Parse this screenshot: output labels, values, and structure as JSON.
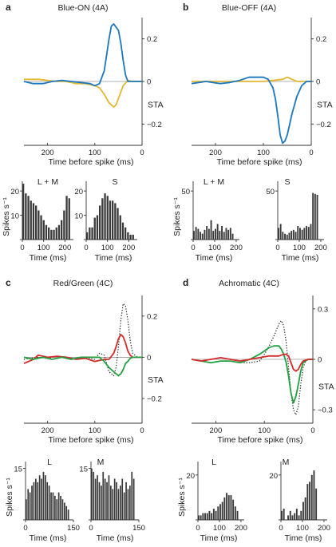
{
  "colors": {
    "blue": "#1a77c0",
    "yellow": "#e4b830",
    "red": "#d42a2a",
    "green": "#22a040",
    "black": "#222222",
    "bar": "#3a3a3a"
  },
  "chart_data": [
    {
      "type": "line",
      "panel_label": "a",
      "title": "Blue-ON (4A)",
      "xlabel": "Time before spike (ms)",
      "ylabel": "STA",
      "xlim": [
        250,
        0
      ],
      "ylim": [
        -0.3,
        0.3
      ],
      "xticks": [
        "200",
        "100",
        "0"
      ],
      "xtick_values": [
        200,
        100,
        0
      ],
      "yticks": [
        "0.2",
        "0",
        "−0.2"
      ],
      "ytick_values": [
        0.2,
        0,
        -0.2
      ],
      "zero_line": true,
      "series": [
        {
          "color_key": "yellow",
          "style": "solid",
          "x": [
            250,
            220,
            200,
            180,
            160,
            140,
            120,
            100,
            90,
            80,
            70,
            60,
            55,
            50,
            40,
            30,
            20,
            10,
            0
          ],
          "y": [
            0.01,
            0.01,
            0.005,
            0,
            0,
            -0.01,
            -0.01,
            -0.02,
            -0.03,
            -0.06,
            -0.1,
            -0.12,
            -0.11,
            -0.08,
            -0.02,
            0.005,
            0,
            0,
            0
          ]
        },
        {
          "color_key": "blue",
          "style": "solid",
          "x": [
            250,
            230,
            210,
            190,
            170,
            150,
            130,
            110,
            100,
            90,
            80,
            70,
            65,
            60,
            50,
            45,
            40,
            35,
            30,
            20,
            10,
            0
          ],
          "y": [
            0,
            -0.01,
            -0.01,
            0,
            0.005,
            0,
            -0.005,
            -0.01,
            -0.02,
            -0.01,
            0.05,
            0.2,
            0.26,
            0.27,
            0.24,
            0.18,
            0.1,
            0.03,
            0,
            0,
            0,
            0
          ]
        }
      ]
    },
    {
      "type": "line",
      "panel_label": "b",
      "title": "Blue-OFF (4A)",
      "xlabel": "Time before spike (ms)",
      "ylabel": "STA",
      "xlim": [
        250,
        0
      ],
      "ylim": [
        -0.3,
        0.3
      ],
      "xticks": [
        "200",
        "100",
        "0"
      ],
      "xtick_values": [
        200,
        100,
        0
      ],
      "yticks": [
        "0.2",
        "0",
        "−0.2"
      ],
      "ytick_values": [
        0.2,
        0,
        -0.2
      ],
      "zero_line": true,
      "series": [
        {
          "color_key": "yellow",
          "style": "solid",
          "x": [
            250,
            220,
            200,
            180,
            160,
            140,
            120,
            100,
            80,
            60,
            50,
            45,
            40,
            30,
            20,
            10,
            0
          ],
          "y": [
            0,
            0,
            0,
            0,
            0,
            0,
            0,
            0,
            0.005,
            0.01,
            0.02,
            0.015,
            0.01,
            0,
            0,
            0,
            0
          ]
        },
        {
          "color_key": "blue",
          "style": "solid",
          "x": [
            250,
            220,
            190,
            170,
            150,
            130,
            120,
            110,
            100,
            90,
            80,
            75,
            70,
            65,
            60,
            55,
            50,
            40,
            30,
            20,
            10,
            0
          ],
          "y": [
            -0.01,
            0,
            -0.01,
            -0.005,
            0.005,
            0.02,
            0.02,
            0.02,
            0.02,
            0.01,
            -0.03,
            -0.08,
            -0.16,
            -0.25,
            -0.29,
            -0.28,
            -0.25,
            -0.15,
            -0.07,
            -0.02,
            0,
            0
          ]
        }
      ]
    },
    {
      "type": "line",
      "panel_label": "c",
      "title": "Red/Green (4C)",
      "xlabel": "Time before spike (ms)",
      "ylabel": "STA",
      "xlim": [
        250,
        0
      ],
      "ylim": [
        -0.32,
        0.3
      ],
      "xticks": [
        "200",
        "100",
        "0"
      ],
      "xtick_values": [
        200,
        100,
        0
      ],
      "yticks": [
        "0.2",
        "0",
        "−0.2"
      ],
      "ytick_values": [
        0.2,
        0,
        -0.2
      ],
      "zero_line": true,
      "series": [
        {
          "color_key": "black",
          "style": "dotted",
          "x": [
            250,
            220,
            200,
            180,
            160,
            140,
            120,
            100,
            90,
            80,
            70,
            60,
            55,
            50,
            45,
            40,
            35,
            30,
            25,
            20,
            10,
            0
          ],
          "y": [
            -0.01,
            0,
            -0.005,
            0.005,
            0,
            -0.01,
            0,
            -0.01,
            0.02,
            0.01,
            -0.07,
            -0.09,
            -0.05,
            0.05,
            0.18,
            0.26,
            0.25,
            0.18,
            0.08,
            0.02,
            0,
            0
          ]
        },
        {
          "color_key": "red",
          "style": "solid",
          "x": [
            250,
            240,
            230,
            220,
            200,
            180,
            160,
            140,
            120,
            100,
            80,
            70,
            60,
            55,
            50,
            45,
            40,
            35,
            30,
            25,
            20,
            10,
            0
          ],
          "y": [
            -0.03,
            -0.02,
            -0.01,
            0.01,
            0,
            0.005,
            0,
            -0.01,
            -0.005,
            -0.02,
            -0.01,
            -0.01,
            0.02,
            0.05,
            0.09,
            0.11,
            0.1,
            0.07,
            0.03,
            0.01,
            0,
            0,
            0
          ]
        },
        {
          "color_key": "green",
          "style": "solid",
          "x": [
            250,
            230,
            210,
            190,
            170,
            150,
            130,
            110,
            90,
            80,
            70,
            60,
            50,
            45,
            40,
            35,
            30,
            25,
            20,
            10,
            0
          ],
          "y": [
            0,
            -0.01,
            0,
            -0.01,
            0,
            -0.01,
            0,
            0,
            0,
            -0.02,
            -0.05,
            -0.07,
            -0.09,
            -0.08,
            -0.06,
            -0.03,
            -0.02,
            -0.005,
            0,
            0,
            0
          ]
        }
      ]
    },
    {
      "type": "line",
      "panel_label": "d",
      "title": "Achromatic (4C)",
      "xlabel": "Time before spike (ms)",
      "ylabel": "STA",
      "xlim": [
        250,
        0
      ],
      "ylim": [
        -0.38,
        0.38
      ],
      "xticks": [
        "200",
        "100",
        "0"
      ],
      "xtick_values": [
        200,
        100,
        0
      ],
      "yticks": [
        "0.3",
        "0",
        "−0.3"
      ],
      "ytick_values": [
        0.3,
        0,
        -0.3
      ],
      "zero_line": true,
      "series": [
        {
          "color_key": "black",
          "style": "dotted",
          "x": [
            250,
            230,
            210,
            190,
            170,
            150,
            130,
            110,
            100,
            90,
            80,
            70,
            65,
            60,
            55,
            50,
            45,
            40,
            35,
            30,
            25,
            20,
            15,
            10,
            0
          ],
          "y": [
            0,
            -0.01,
            -0.02,
            -0.01,
            -0.01,
            -0.02,
            -0.02,
            -0.01,
            0.03,
            0.08,
            0.14,
            0.21,
            0.23,
            0.2,
            0.1,
            -0.05,
            -0.2,
            -0.3,
            -0.33,
            -0.28,
            -0.15,
            -0.05,
            -0.01,
            0,
            0
          ]
        },
        {
          "color_key": "green",
          "style": "solid",
          "x": [
            250,
            230,
            210,
            190,
            170,
            150,
            130,
            110,
            100,
            90,
            80,
            70,
            65,
            60,
            55,
            50,
            45,
            40,
            35,
            30,
            25,
            20,
            10,
            0
          ],
          "y": [
            0,
            -0.01,
            -0.02,
            -0.01,
            -0.01,
            -0.02,
            0,
            0.03,
            0.05,
            0.07,
            0.08,
            0.08,
            0.06,
            0.03,
            -0.02,
            -0.1,
            -0.2,
            -0.26,
            -0.22,
            -0.15,
            -0.07,
            -0.02,
            0,
            0
          ]
        },
        {
          "color_key": "red",
          "style": "solid",
          "x": [
            250,
            230,
            210,
            190,
            170,
            150,
            130,
            110,
            90,
            80,
            70,
            60,
            55,
            50,
            45,
            40,
            35,
            30,
            25,
            20,
            10,
            0
          ],
          "y": [
            0,
            -0.01,
            0,
            0.01,
            0,
            -0.01,
            0,
            0.01,
            0.02,
            0.02,
            0.02,
            0.03,
            0.03,
            0.02,
            -0.02,
            -0.06,
            -0.07,
            -0.06,
            -0.03,
            -0.01,
            0,
            0
          ]
        }
      ]
    },
    {
      "type": "bar",
      "title": "L + M",
      "xlabel": "Time (ms)",
      "ylabel": "Spikes s⁻¹",
      "xlim": [
        0,
        240
      ],
      "ylim": [
        0,
        24
      ],
      "xticks": [
        "0",
        "100",
        "200"
      ],
      "xtick_values": [
        0,
        100,
        200
      ],
      "yticks": [
        "0",
        "10",
        "20"
      ],
      "ytick_values": [
        0,
        10,
        20
      ],
      "bin_starts": [
        0,
        12,
        24,
        36,
        48,
        60,
        72,
        84,
        96,
        108,
        120,
        132,
        144,
        156,
        168,
        180,
        192,
        204,
        216
      ],
      "values": [
        23,
        19,
        18,
        16,
        15,
        14,
        12,
        10,
        8,
        6,
        5,
        4,
        4,
        5,
        6,
        8,
        12,
        18,
        17
      ]
    },
    {
      "type": "bar",
      "title": "S",
      "xlabel": "Time (ms)",
      "ylabel": "",
      "xlim": [
        0,
        240
      ],
      "ylim": [
        0,
        24
      ],
      "xticks": [
        "0",
        "100",
        "200"
      ],
      "xtick_values": [
        0,
        100,
        200
      ],
      "yticks": [
        "0",
        "10",
        "20"
      ],
      "ytick_values": [
        0,
        10,
        20
      ],
      "bin_starts": [
        0,
        12,
        24,
        36,
        48,
        60,
        72,
        84,
        96,
        108,
        120,
        132,
        144,
        156,
        168,
        180,
        192,
        204,
        216
      ],
      "values": [
        3,
        5,
        5,
        9,
        10,
        14,
        17,
        19,
        18,
        16,
        16,
        15,
        13,
        10,
        7,
        5,
        3,
        2,
        2
      ]
    },
    {
      "type": "bar",
      "title": "L + M",
      "xlabel": "Time (ms)",
      "ylabel": "Spikes s⁻¹",
      "xlim": [
        0,
        215
      ],
      "ylim": [
        0,
        60
      ],
      "xticks": [
        "0",
        "100",
        "200"
      ],
      "xtick_values": [
        0,
        100,
        200
      ],
      "yticks": [
        "0",
        "50"
      ],
      "ytick_values": [
        0,
        50
      ],
      "bin_starts": [
        0,
        10,
        20,
        30,
        40,
        50,
        60,
        70,
        80,
        90,
        100,
        110,
        120,
        130,
        140,
        150,
        160,
        170,
        180
      ],
      "values": [
        9,
        13,
        11,
        8,
        6,
        10,
        14,
        11,
        20,
        9,
        11,
        16,
        9,
        14,
        8,
        12,
        10,
        12,
        6
      ]
    },
    {
      "type": "bar",
      "title": "S",
      "xlabel": "Time (ms)",
      "ylabel": "",
      "xlim": [
        0,
        215
      ],
      "ylim": [
        0,
        60
      ],
      "xticks": [
        "0",
        "100",
        "200"
      ],
      "xtick_values": [
        0,
        100,
        200
      ],
      "yticks": [
        "0",
        "50"
      ],
      "ytick_values": [
        0,
        50
      ],
      "bin_starts": [
        0,
        10,
        20,
        30,
        40,
        50,
        60,
        70,
        80,
        90,
        100,
        110,
        120,
        130,
        140,
        150,
        160,
        170,
        180
      ],
      "values": [
        12,
        16,
        8,
        6,
        5,
        7,
        9,
        10,
        8,
        14,
        12,
        10,
        12,
        14,
        13,
        16,
        48,
        47,
        46
      ]
    },
    {
      "type": "bar",
      "title": "L",
      "xlabel": "Time (ms)",
      "ylabel": "Spikes s⁻¹",
      "xlim": [
        0,
        150
      ],
      "ylim": [
        0,
        17
      ],
      "xticks": [
        "0",
        "150"
      ],
      "xtick_values": [
        0,
        150
      ],
      "yticks": [
        "0",
        "15"
      ],
      "ytick_values": [
        0,
        15
      ],
      "bin_starts": [
        0,
        6,
        12,
        18,
        24,
        30,
        36,
        42,
        48,
        54,
        60,
        66,
        72,
        78,
        84,
        90,
        96,
        102,
        108,
        114,
        120,
        126,
        132
      ],
      "values": [
        6,
        9,
        8,
        10,
        11,
        12,
        11,
        13,
        12,
        14,
        13,
        11,
        10,
        8,
        8,
        7,
        6,
        8,
        7,
        6,
        5,
        4,
        3
      ]
    },
    {
      "type": "bar",
      "title": "M",
      "xlabel": "Time (ms)",
      "ylabel": "",
      "xlim": [
        0,
        150
      ],
      "ylim": [
        0,
        17
      ],
      "xticks": [
        "0",
        "150"
      ],
      "xtick_values": [
        0,
        150
      ],
      "yticks": [
        "0",
        "15"
      ],
      "ytick_values": [
        0,
        15
      ],
      "bin_starts": [
        0,
        6,
        12,
        18,
        24,
        30,
        36,
        42,
        48,
        54,
        60,
        66,
        72,
        78,
        84,
        90,
        96,
        102,
        108,
        114,
        120,
        126,
        132
      ],
      "values": [
        15,
        14,
        12,
        13,
        11,
        10,
        14,
        12,
        11,
        13,
        10,
        9,
        12,
        11,
        9,
        10,
        12,
        8,
        11,
        9,
        10,
        14,
        12
      ]
    },
    {
      "type": "bar",
      "title": "L",
      "xlabel": "Time (ms)",
      "ylabel": "Spikes s⁻¹",
      "xlim": [
        0,
        215
      ],
      "ylim": [
        0,
        26
      ],
      "xticks": [
        "0",
        "100",
        "200"
      ],
      "xtick_values": [
        0,
        100,
        200
      ],
      "yticks": [
        "0",
        "20"
      ],
      "ytick_values": [
        0,
        20
      ],
      "bin_starts": [
        0,
        10,
        20,
        30,
        40,
        50,
        60,
        70,
        80,
        90,
        100,
        110,
        120,
        130,
        140,
        150,
        160,
        170,
        180
      ],
      "values": [
        2,
        2,
        3,
        3,
        3,
        4,
        3,
        5,
        4,
        6,
        7,
        8,
        10,
        12,
        11,
        11,
        9,
        6,
        4
      ]
    },
    {
      "type": "bar",
      "title": "M",
      "xlabel": "Time (ms)",
      "ylabel": "",
      "xlim": [
        0,
        215
      ],
      "ylim": [
        0,
        26
      ],
      "xticks": [
        "0",
        "100",
        "200"
      ],
      "xtick_values": [
        0,
        100,
        200
      ],
      "yticks": [
        "0",
        "20"
      ],
      "ytick_values": [
        0,
        20
      ],
      "bin_starts": [
        0,
        10,
        20,
        30,
        40,
        50,
        60,
        70,
        80,
        90,
        100,
        110,
        120,
        130,
        140,
        150,
        160,
        170,
        180
      ],
      "values": [
        4,
        5,
        0,
        2,
        4,
        2,
        3,
        5,
        2,
        4,
        8,
        10,
        16,
        17,
        20,
        22,
        14,
        0,
        0
      ]
    }
  ]
}
